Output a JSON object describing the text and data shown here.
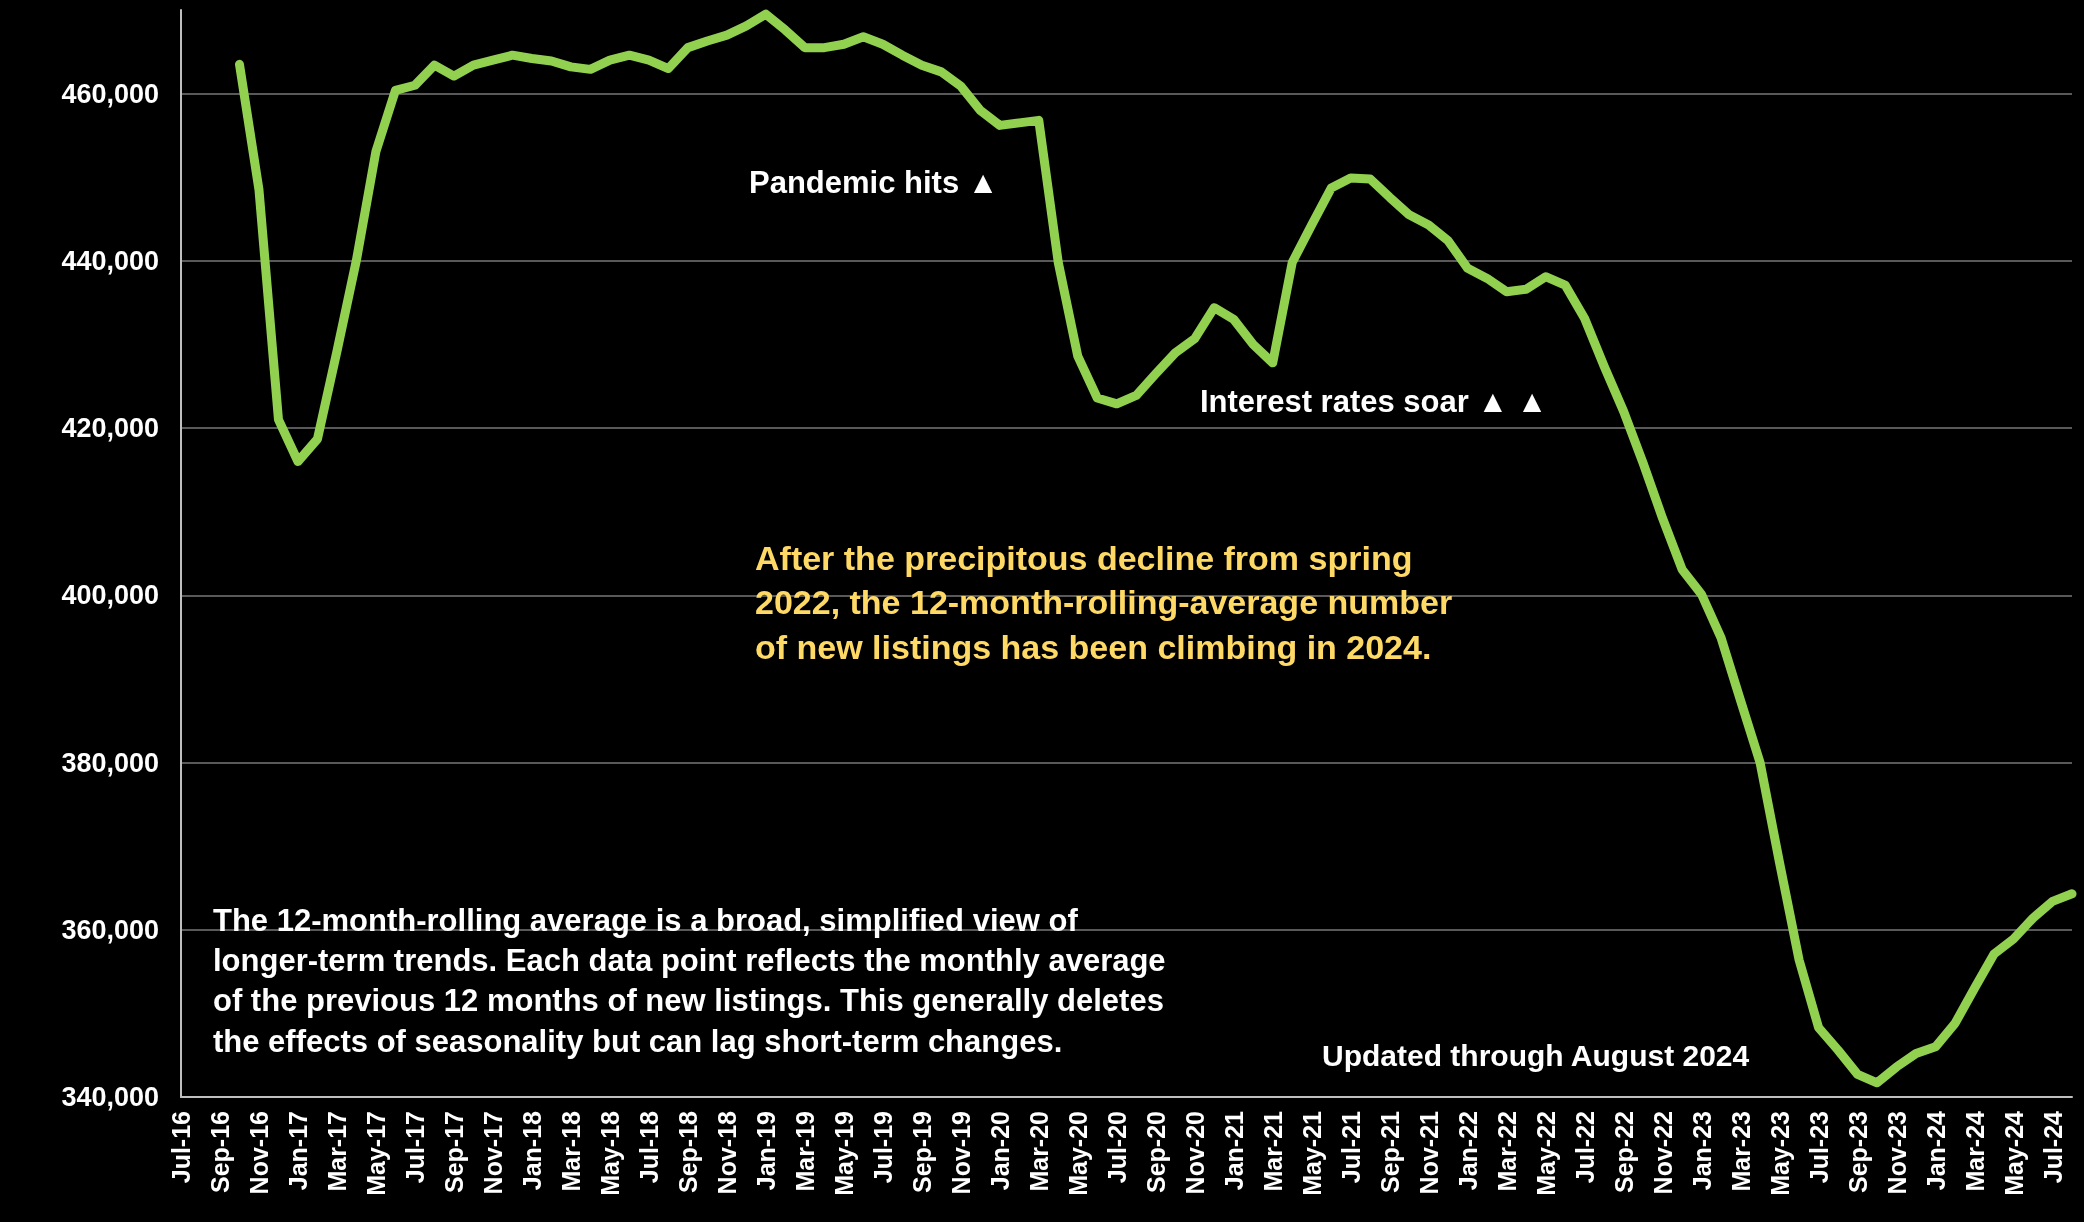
{
  "chart_data": {
    "type": "line",
    "categories": [
      "Jul-16",
      null,
      "Sep-16",
      null,
      "Nov-16",
      null,
      "Jan-17",
      null,
      "Mar-17",
      null,
      "May-17",
      null,
      "Jul-17",
      null,
      "Sep-17",
      null,
      "Nov-17",
      null,
      "Jan-18",
      null,
      "Mar-18",
      null,
      "May-18",
      null,
      "Jul-18",
      null,
      "Sep-18",
      null,
      "Nov-18",
      null,
      "Jan-19",
      null,
      "Mar-19",
      null,
      "May-19",
      null,
      "Jul-19",
      null,
      "Sep-19",
      null,
      "Nov-19",
      null,
      "Jan-20",
      null,
      "Mar-20",
      null,
      "May-20",
      null,
      "Jul-20",
      null,
      "Sep-20",
      null,
      "Nov-20",
      null,
      "Jan-21",
      null,
      "Mar-21",
      null,
      "May-21",
      null,
      "Jul-21",
      null,
      "Sep-21",
      null,
      "Nov-21",
      null,
      "Jan-22",
      null,
      "Mar-22",
      null,
      "May-22",
      null,
      "Jul-22",
      null,
      "Sep-22",
      null,
      "Nov-22",
      null,
      "Jan-23",
      null,
      "Mar-23",
      null,
      "May-23",
      null,
      "Jul-23",
      null,
      "Sep-23",
      null,
      "Nov-23",
      null,
      "Jan-24",
      null,
      "Mar-24",
      null,
      "May-24",
      null,
      "Jul-24",
      null
    ],
    "series": [
      {
        "color": "#92d050",
        "values": [
          null,
          null,
          null,
          463500,
          448500,
          421000,
          416000,
          418700,
          429200,
          440100,
          453100,
          460400,
          461000,
          463400,
          462100,
          463400,
          464000,
          464600,
          464200,
          463900,
          463200,
          462900,
          464000,
          464600,
          464000,
          463000,
          465500,
          466300,
          467000,
          468100,
          469500,
          467600,
          465500,
          465500,
          465900,
          466800,
          465900,
          464600,
          463400,
          462600,
          460900,
          458000,
          456200,
          456500,
          456800,
          439800,
          428600,
          423600,
          422900,
          423900,
          426500,
          429000,
          430700,
          434400,
          433000,
          430000,
          427800,
          439800,
          444300,
          448700,
          449900,
          449800,
          447600,
          445500,
          444300,
          442400,
          439100,
          437900,
          436300,
          436600,
          438100,
          437100,
          433100,
          427400,
          422000,
          415800,
          409200,
          403100,
          400100,
          394900,
          387400,
          380000,
          368000,
          356400,
          348300,
          345600,
          342700,
          341700,
          343600,
          345200,
          346000,
          348800,
          353000,
          357100,
          358900,
          361400,
          363400,
          364300
        ]
      }
    ],
    "ylim": [
      340000,
      470000
    ],
    "yticks": [
      {
        "value": 340000,
        "label": "340,000"
      },
      {
        "value": 360000,
        "label": "360,000"
      },
      {
        "value": 380000,
        "label": "380,000"
      },
      {
        "value": 400000,
        "label": "400,000"
      },
      {
        "value": 420000,
        "label": "420,000"
      },
      {
        "value": 440000,
        "label": "440,000"
      },
      {
        "value": 460000,
        "label": "460,000"
      }
    ],
    "grid": "y",
    "line_style": "solid",
    "annotations": [
      "Pandemic hits ▲",
      "Interest rates soar ▲ ▲",
      "After the precipitous decline from spring 2022, the 12-month-rolling-average number of new listings has been climbing in 2024.",
      "The 12-month-rolling average is a broad, simplified view of longer-term trends. Each data point reflects the monthly average of the previous 12 months of new listings. This generally deletes the effects of seasonality but can lag short-term changes.",
      "Updated through August 2024"
    ]
  }
}
